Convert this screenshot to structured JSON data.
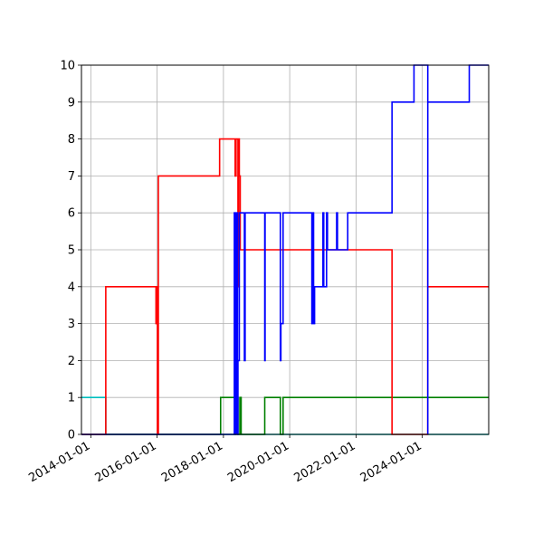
{
  "chart_data": {
    "type": "line",
    "step": true,
    "grid": true,
    "x_is_date": true,
    "xlim": [
      "2013-09-20",
      "2026-01-01"
    ],
    "ylim": [
      0,
      10
    ],
    "x_ticks": [
      "2014-01-01",
      "2016-01-01",
      "2018-01-01",
      "2020-01-01",
      "2022-01-01",
      "2024-01-01"
    ],
    "y_ticks": [
      0,
      1,
      2,
      3,
      4,
      5,
      6,
      7,
      8,
      9,
      10
    ],
    "series": [
      {
        "color": "#00bfbf",
        "x": [
          "2013-09-20",
          "2014-06-15",
          "2014-06-15",
          "2026-01-01"
        ],
        "y": [
          1,
          1,
          0,
          0
        ]
      },
      {
        "color": "#008000",
        "x": [
          "2013-09-20",
          "2017-12-01",
          "2017-12-01",
          "2018-05-05",
          "2018-05-05",
          "2018-05-15",
          "2018-05-15",
          "2018-06-10",
          "2018-06-10",
          "2018-07-01",
          "2018-07-01",
          "2018-07-15",
          "2018-07-15",
          "2019-04-01",
          "2019-04-01",
          "2019-09-20",
          "2019-09-20",
          "2019-10-20",
          "2019-10-20",
          "2026-01-01"
        ],
        "y": [
          0,
          0,
          1,
          1,
          0,
          0,
          1,
          1,
          0,
          0,
          1,
          1,
          0,
          0,
          1,
          1,
          0,
          0,
          1,
          1
        ]
      },
      {
        "color": "#ff0000",
        "x": [
          "2013-09-20",
          "2014-06-15",
          "2014-06-15",
          "2015-12-20",
          "2015-12-20",
          "2015-12-28",
          "2015-12-28",
          "2016-01-05",
          "2016-01-05",
          "2016-01-15",
          "2016-01-15",
          "2017-11-20",
          "2017-11-20",
          "2018-05-10",
          "2018-05-10",
          "2018-05-20",
          "2018-05-20",
          "2018-06-10",
          "2018-06-10",
          "2018-06-18",
          "2018-06-18",
          "2018-06-25",
          "2018-06-25",
          "2018-07-05",
          "2018-07-05",
          "2023-02-01",
          "2023-02-01",
          "2024-03-01",
          "2024-03-01",
          "2024-03-01",
          "2024-03-01",
          "2025-06-01",
          "2025-06-01",
          "2026-01-01"
        ],
        "y": [
          0,
          0,
          4,
          4,
          3,
          3,
          4,
          4,
          0,
          0,
          7,
          7,
          8,
          8,
          7,
          7,
          8,
          8,
          4,
          4,
          8,
          8,
          7,
          7,
          5,
          5,
          0,
          0,
          5,
          5,
          4,
          4,
          4,
          4
        ]
      },
      {
        "color": "#0000ff",
        "x": [
          "2013-09-20",
          "2018-05-01",
          "2018-05-01",
          "2018-05-15",
          "2018-05-15",
          "2018-05-20",
          "2018-05-20",
          "2018-06-05",
          "2018-06-05",
          "2018-06-10",
          "2018-06-10",
          "2018-06-25",
          "2018-06-25",
          "2018-08-20",
          "2018-08-20",
          "2018-08-28",
          "2018-08-28",
          "2019-04-01",
          "2019-04-01",
          "2019-04-05",
          "2019-04-05",
          "2019-09-20",
          "2019-09-20",
          "2019-09-26",
          "2019-09-26",
          "2019-10-20",
          "2019-10-20",
          "2020-09-01",
          "2020-09-01",
          "2020-09-06",
          "2020-09-06",
          "2020-09-20",
          "2020-09-20",
          "2020-10-01",
          "2020-10-01",
          "2021-01-01",
          "2021-01-01",
          "2021-01-10",
          "2021-01-10",
          "2021-02-10",
          "2021-02-10",
          "2021-02-20",
          "2021-02-20",
          "2021-06-01",
          "2021-06-01",
          "2021-06-10",
          "2021-06-10",
          "2021-10-01",
          "2021-10-01",
          "2023-02-01",
          "2023-02-01",
          "2023-10-01",
          "2023-10-01",
          "2024-03-01",
          "2024-03-01",
          "2024-03-01",
          "2024-03-01",
          "2025-06-01",
          "2025-06-01",
          "2026-01-01"
        ],
        "y": [
          0,
          0,
          6,
          6,
          0,
          0,
          6,
          6,
          0,
          0,
          2,
          2,
          6,
          6,
          2,
          2,
          6,
          6,
          2,
          2,
          6,
          6,
          2,
          2,
          3,
          3,
          6,
          6,
          3,
          3,
          6,
          6,
          3,
          3,
          4,
          4,
          6,
          6,
          4,
          4,
          6,
          6,
          5,
          5,
          6,
          6,
          5,
          5,
          6,
          6,
          9,
          9,
          10,
          10,
          0,
          0,
          9,
          9,
          10,
          10
        ]
      }
    ]
  }
}
